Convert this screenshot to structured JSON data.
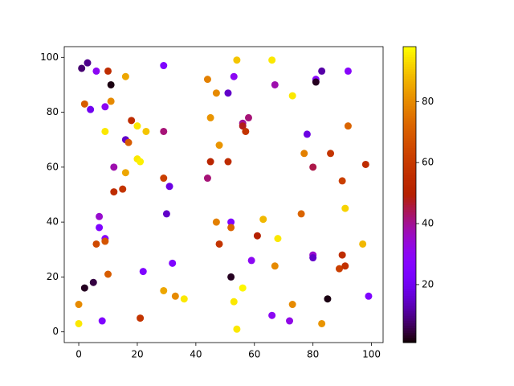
{
  "chart_data": {
    "type": "scatter",
    "colormap": "gnuplot",
    "x": [
      0,
      0,
      1,
      2,
      3,
      2,
      4,
      5,
      6,
      6,
      7,
      7,
      8,
      9,
      9,
      9,
      9,
      10,
      11,
      10,
      11,
      12,
      12,
      15,
      16,
      16,
      17,
      16,
      18,
      20,
      20,
      21,
      21,
      22,
      23,
      29,
      29,
      29,
      29,
      30,
      31,
      32,
      33,
      36,
      44,
      44,
      45,
      45,
      47,
      47,
      48,
      48,
      51,
      51,
      52,
      52,
      52,
      53,
      53,
      54,
      54,
      56,
      56,
      57,
      56,
      58,
      59,
      61,
      63,
      66,
      66,
      67,
      67,
      68,
      72,
      73,
      73,
      76,
      77,
      78,
      80,
      80,
      80,
      81,
      81,
      83,
      83,
      85,
      86,
      89,
      90,
      90,
      91,
      91,
      92,
      92,
      97,
      98,
      99
    ],
    "y": [
      3,
      10,
      96,
      16,
      98,
      83,
      81,
      18,
      95,
      32,
      42,
      38,
      4,
      34,
      33,
      82,
      73,
      95,
      90,
      21,
      84,
      60,
      51,
      52,
      93,
      70,
      69,
      58,
      77,
      75,
      63,
      62,
      5,
      22,
      73,
      97,
      73,
      56,
      15,
      43,
      53,
      25,
      13,
      12,
      92,
      56,
      78,
      62,
      87,
      40,
      68,
      32,
      87,
      62,
      40,
      38,
      20,
      93,
      11,
      99,
      1,
      76,
      75,
      73,
      16,
      78,
      26,
      35,
      41,
      99,
      6,
      90,
      24,
      34,
      4,
      86,
      10,
      43,
      65,
      72,
      60,
      28,
      27,
      92,
      91,
      95,
      3,
      12,
      65,
      23,
      28,
      55,
      24,
      45,
      95,
      75,
      32,
      61,
      13
    ],
    "c": [
      95,
      80,
      8,
      3,
      10,
      70,
      20,
      5,
      30,
      65,
      35,
      25,
      25,
      28,
      68,
      30,
      95,
      55,
      2,
      70,
      80,
      38,
      55,
      58,
      85,
      15,
      70,
      85,
      55,
      95,
      95,
      96,
      58,
      25,
      90,
      25,
      42,
      62,
      85,
      15,
      18,
      25,
      80,
      95,
      78,
      42,
      82,
      52,
      80,
      78,
      82,
      58,
      15,
      55,
      25,
      72,
      3,
      30,
      95,
      90,
      95,
      40,
      48,
      58,
      97,
      42,
      30,
      50,
      88,
      95,
      30,
      38,
      80,
      95,
      32,
      95,
      80,
      72,
      78,
      18,
      45,
      35,
      15,
      28,
      3,
      12,
      82,
      2,
      58,
      62,
      55,
      62,
      57,
      92,
      28,
      72,
      88,
      55,
      25
    ],
    "xlim": [
      -4.95,
      103.95
    ],
    "ylim": [
      -3.9,
      103.9
    ],
    "clim": [
      1,
      98
    ],
    "xticks": [
      0,
      20,
      40,
      60,
      80,
      100
    ],
    "yticks": [
      0,
      20,
      40,
      60,
      80,
      100
    ],
    "cticks": [
      20,
      40,
      60,
      80
    ]
  }
}
